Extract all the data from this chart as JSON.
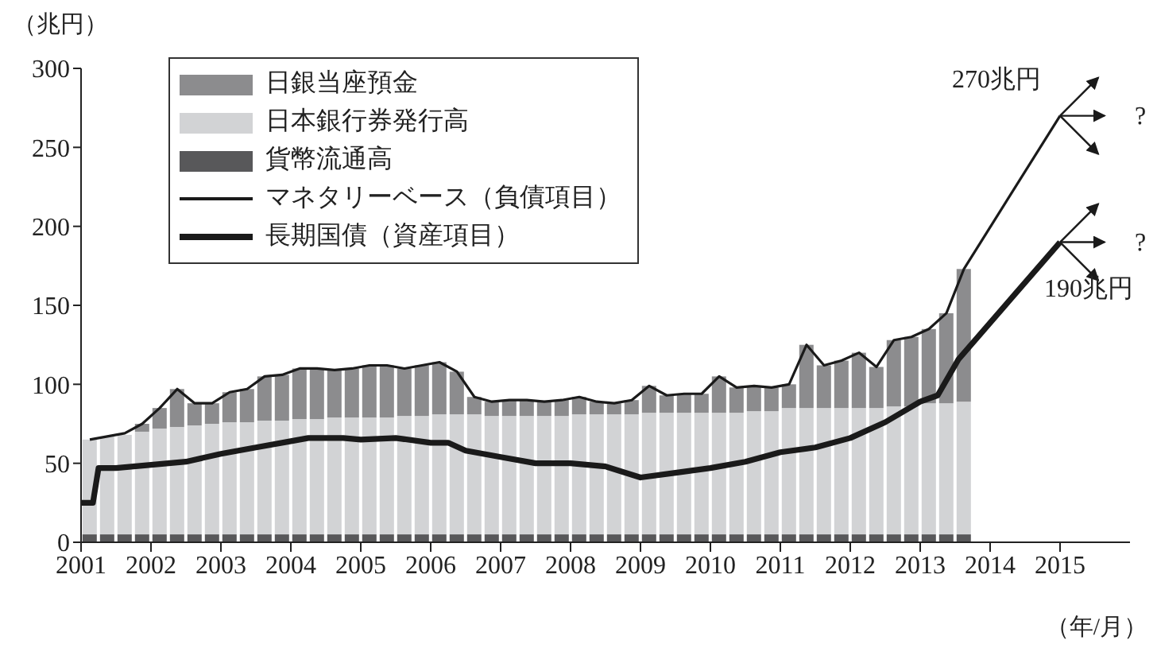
{
  "chart_data": {
    "type": "bar",
    "stacked": true,
    "ylabel": "（兆円）",
    "xlabel": "（年/月）",
    "x": [
      2001.125,
      2001.375,
      2001.625,
      2001.875,
      2002.125,
      2002.375,
      2002.625,
      2002.875,
      2003.125,
      2003.375,
      2003.625,
      2003.875,
      2004.125,
      2004.375,
      2004.625,
      2004.875,
      2005.125,
      2005.375,
      2005.625,
      2005.875,
      2006.125,
      2006.375,
      2006.625,
      2006.875,
      2007.125,
      2007.375,
      2007.625,
      2007.875,
      2008.125,
      2008.375,
      2008.625,
      2008.875,
      2009.125,
      2009.375,
      2009.625,
      2009.875,
      2010.125,
      2010.375,
      2010.625,
      2010.875,
      2011.125,
      2011.375,
      2011.625,
      2011.875,
      2012.125,
      2012.375,
      2012.625,
      2012.875,
      2013.125,
      2013.375,
      2013.625
    ],
    "series": [
      {
        "name": "貨幣流通高",
        "color": "#58585a",
        "values": [
          5,
          5,
          5,
          5,
          5,
          5,
          5,
          5,
          5,
          5,
          5,
          5,
          5,
          5,
          5,
          5,
          5,
          5,
          5,
          5,
          5,
          5,
          5,
          5,
          5,
          5,
          5,
          5,
          5,
          5,
          5,
          5,
          5,
          5,
          5,
          5,
          5,
          5,
          5,
          5,
          5,
          5,
          5,
          5,
          5,
          5,
          5,
          5,
          5,
          5,
          5
        ]
      },
      {
        "name": "日本銀行券発行高",
        "color": "#d2d3d5",
        "values": [
          60,
          62,
          63,
          65,
          67,
          68,
          69,
          70,
          71,
          71,
          72,
          72,
          73,
          73,
          74,
          74,
          74,
          74,
          75,
          75,
          76,
          76,
          76,
          75,
          75,
          75,
          75,
          75,
          76,
          76,
          76,
          76,
          77,
          77,
          77,
          77,
          77,
          77,
          78,
          78,
          80,
          80,
          80,
          80,
          80,
          80,
          81,
          81,
          83,
          83,
          84
        ]
      },
      {
        "name": "日銀当座預金",
        "color": "#8c8c8e",
        "values": [
          0,
          0,
          null,
          5,
          13,
          24,
          14,
          13,
          19,
          21,
          28,
          29,
          32,
          32,
          30,
          31,
          33,
          33,
          30,
          32,
          33,
          27,
          11,
          9,
          10,
          10,
          9,
          10,
          11,
          8,
          7,
          9,
          17,
          11,
          12,
          12,
          23,
          16,
          16,
          15,
          15,
          40,
          27,
          30,
          35,
          26,
          42,
          44,
          47,
          57,
          84
        ]
      },
      {
        "type": "line",
        "name": "マネタリーベース（負債項目）",
        "color": "#1a1a1a",
        "x": [
          2001.125,
          2001.375,
          2001.625,
          2001.875,
          2002.125,
          2002.375,
          2002.625,
          2002.875,
          2003.125,
          2003.375,
          2003.625,
          2003.875,
          2004.125,
          2004.375,
          2004.625,
          2004.875,
          2005.125,
          2005.375,
          2005.625,
          2005.875,
          2006.125,
          2006.375,
          2006.625,
          2006.875,
          2007.125,
          2007.375,
          2007.625,
          2007.875,
          2008.125,
          2008.375,
          2008.625,
          2008.875,
          2009.125,
          2009.375,
          2009.625,
          2009.875,
          2010.125,
          2010.375,
          2010.625,
          2010.875,
          2011.125,
          2011.375,
          2011.625,
          2011.875,
          2012.125,
          2012.375,
          2012.625,
          2012.875,
          2013.125,
          2013.375,
          2013.625,
          2015
        ],
        "values": [
          65,
          67,
          69,
          75,
          85,
          97,
          88,
          88,
          95,
          97,
          105,
          106,
          110,
          110,
          109,
          110,
          112,
          112,
          110,
          112,
          114,
          108,
          92,
          89,
          90,
          90,
          89,
          90,
          92,
          89,
          88,
          90,
          99,
          93,
          94,
          94,
          105,
          98,
          99,
          98,
          100,
          125,
          112,
          115,
          120,
          111,
          128,
          130,
          135,
          145,
          173,
          270
        ]
      },
      {
        "type": "line",
        "name": "長期国債（資産項目）",
        "color": "#1a1a1a",
        "x": [
          2001,
          2001.17,
          2001.25,
          2001.5,
          2002,
          2002.5,
          2003,
          2003.5,
          2004,
          2004.25,
          2004.75,
          2005,
          2005.5,
          2006,
          2006.25,
          2006.5,
          2007,
          2007.5,
          2008,
          2008.5,
          2009,
          2009.5,
          2010,
          2010.5,
          2011,
          2011.5,
          2012,
          2012.5,
          2013,
          2013.25,
          2013.55,
          2015
        ],
        "values": [
          25,
          25,
          47,
          47,
          49,
          51,
          56,
          60,
          64,
          66,
          66,
          65,
          66,
          63,
          63,
          58,
          54,
          50,
          50,
          48,
          41,
          44,
          47,
          51,
          57,
          60,
          66,
          76,
          89,
          93,
          116,
          190
        ]
      }
    ],
    "xlim": [
      2001,
      2016
    ],
    "xticks": [
      2001,
      2002,
      2003,
      2004,
      2005,
      2006,
      2007,
      2008,
      2009,
      2010,
      2011,
      2012,
      2013,
      2014,
      2015
    ],
    "ylim": [
      0,
      300
    ],
    "yticks": [
      0,
      50,
      100,
      150,
      200,
      250,
      300
    ],
    "legend": "top left",
    "annotations": [
      "270兆円",
      "?",
      "190兆円",
      "?"
    ]
  }
}
